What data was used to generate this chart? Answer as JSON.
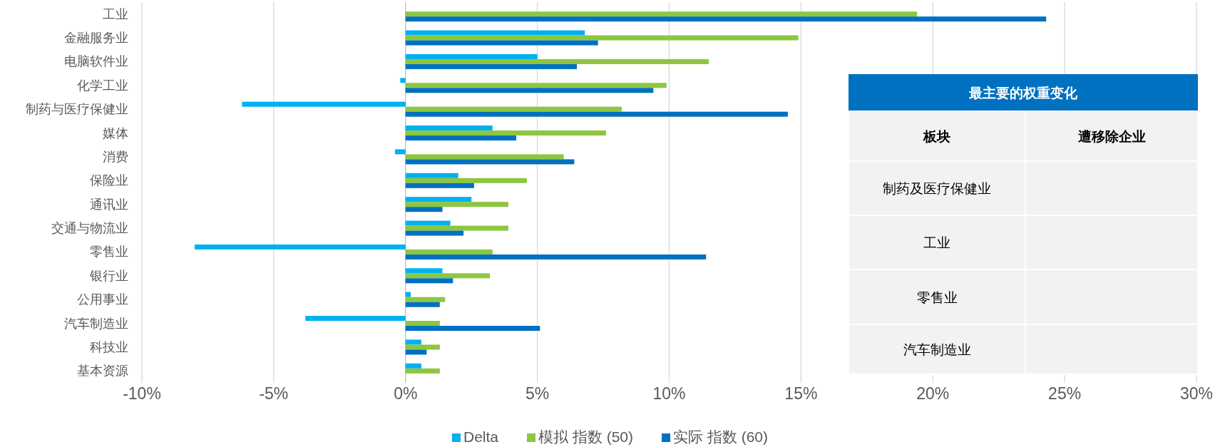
{
  "chart_data": [
    {
      "type": "bar",
      "orientation": "horizontal",
      "categories": [
        "工业",
        "金融服务业",
        "电脑软件业",
        "化学工业",
        "制药与医疗保健业",
        "媒体",
        "消费",
        "保险业",
        "通讯业",
        "交通与物流业",
        "零售业",
        "银行业",
        "公用事业",
        "汽车制造业",
        "科技业",
        "基本资源"
      ],
      "series": [
        {
          "name": "Delta",
          "color": "#00b0f0",
          "values": [
            null,
            6.8,
            5.0,
            -0.2,
            -6.2,
            3.3,
            -0.4,
            2.0,
            2.5,
            1.7,
            -8.0,
            1.4,
            0.2,
            -3.8,
            0.6,
            0.6
          ]
        },
        {
          "name": "模拟 指数 (50)",
          "color": "#8dc63f",
          "values": [
            19.4,
            14.9,
            11.5,
            9.9,
            8.2,
            7.6,
            6.0,
            4.6,
            3.9,
            3.9,
            3.3,
            3.2,
            1.5,
            1.3,
            1.3,
            1.3
          ]
        },
        {
          "name": "实际 指数 (60)",
          "color": "#0070c0",
          "values": [
            24.3,
            7.3,
            6.5,
            9.4,
            14.5,
            4.2,
            6.4,
            2.6,
            1.4,
            2.2,
            11.4,
            1.8,
            1.3,
            5.1,
            0.8,
            null
          ]
        }
      ],
      "xlim": [
        -10,
        30
      ],
      "xticks": [
        {
          "value": -10,
          "label": "-10%"
        },
        {
          "value": -5,
          "label": "-5%"
        },
        {
          "value": 0,
          "label": "0%"
        },
        {
          "value": 5,
          "label": "5%"
        },
        {
          "value": 10,
          "label": "10%"
        },
        {
          "value": 15,
          "label": "15%"
        },
        {
          "value": 20,
          "label": "20%"
        },
        {
          "value": 25,
          "label": "25%"
        },
        {
          "value": 30,
          "label": "30%"
        }
      ],
      "grid": "x",
      "legend": "bottom"
    },
    {
      "type": "other",
      "title": "最主要的权重变化",
      "annotations": [
        "板块",
        "遭移除企业",
        "制药及医疗保健业",
        "工业",
        "零售业",
        "汽车制造业"
      ]
    }
  ]
}
